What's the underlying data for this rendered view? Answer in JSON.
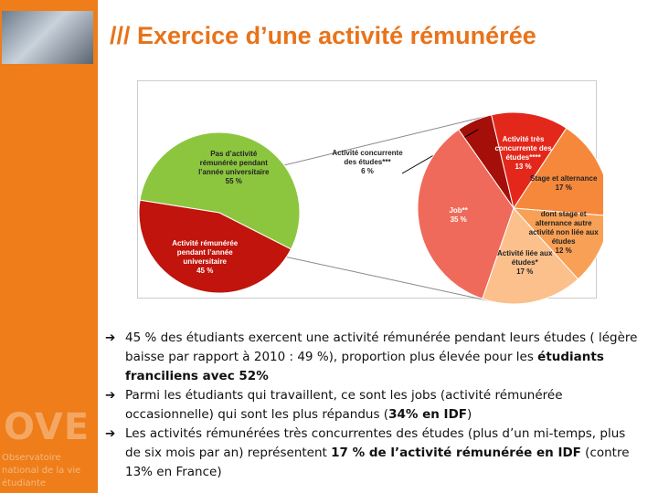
{
  "header": {
    "title": "/// Exercice d’une activité rémunérée"
  },
  "logo": {
    "mark": "OVE",
    "caption": "Observatoire national de la vie étudiante"
  },
  "chart_data": [
    {
      "type": "pie",
      "categories": [
        "Pas d’activité rémunérée pendant l’année universitaire",
        "Activité rémunérée pendant l’année universitaire"
      ],
      "values": [
        55,
        45
      ],
      "value_labels": [
        "55 %",
        "45 %"
      ],
      "colors": [
        "#8cc63f",
        "#c0140c"
      ]
    },
    {
      "type": "pie",
      "categories": [
        "Activité concurrente des études***",
        "Activité très concurrente des études****",
        "Stage et alternance",
        "dont stage et alternance autre activité non liée aux études",
        "Activité liée aux études*",
        "Job**"
      ],
      "values": [
        6,
        13,
        17,
        12,
        17,
        35
      ],
      "value_labels": [
        "6 %",
        "13 %",
        "17 %",
        "12 %",
        "17 %",
        "35 %"
      ],
      "colors": [
        "#a50f0a",
        "#e3281b",
        "#f5883b",
        "#f8a055",
        "#fbc08c",
        "#ef6a5a"
      ]
    }
  ],
  "bullets": {
    "marker": "➔",
    "items": [
      [
        {
          "text": "45 % des étudiants exercent une activité rémunérée pendant leurs études ( légère baisse par rapport à 2010 : 49 %), proportion plus élevée pour les ",
          "bold": false
        },
        {
          "text": "étudiants franciliens avec 52%",
          "bold": true
        }
      ],
      [
        {
          "text": "Parmi les étudiants qui travaillent, ce sont les jobs (activité rémunérée occasionnelle) qui sont les plus répandus (",
          "bold": false
        },
        {
          "text": "34% en IDF",
          "bold": true
        },
        {
          "text": ")",
          "bold": false
        }
      ],
      [
        {
          "text": "Les activités rémunérées très concurrentes des études (plus d’un mi-temps, plus de six mois par an) représentent ",
          "bold": false
        },
        {
          "text": "17 % de l’activité rémunérée en IDF",
          "bold": true
        },
        {
          "text": " (contre 13% en France)",
          "bold": false
        }
      ]
    ]
  }
}
